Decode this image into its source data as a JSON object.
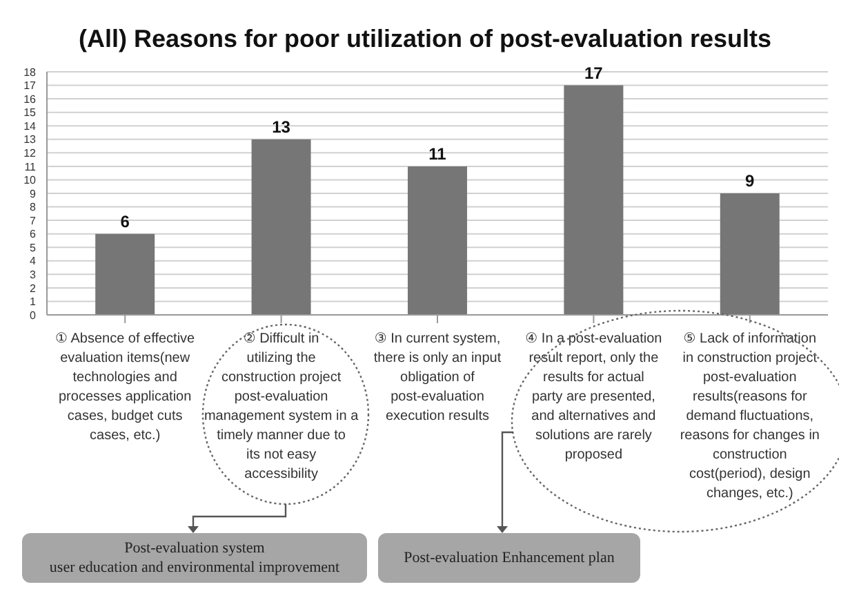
{
  "chart_data": {
    "type": "bar",
    "title": "(All) Reasons for poor utilization of post-evaluation results",
    "categories": [
      "① Absence of effective evaluation items(new technologies and processes application cases, budget cuts cases, etc.)",
      "② Difficult in utilizing the construction project post-evaluation management system in a timely manner due to its not easy accessibility",
      "③ In current system, there is only an input obligation of post-evaluation execution results",
      "④ In a post-evaluation result report, only the results for actual party are presented, and alternatives and solutions are rarely proposed",
      "⑤ Lack of information in construction project post-evaluation results(reasons for demand fluctuations, reasons for changes in construction cost(period), design changes, etc.)"
    ],
    "values": [
      6,
      13,
      11,
      17,
      9
    ],
    "color": "#767676",
    "ylim": [
      0,
      18
    ],
    "yticks": [
      0,
      1,
      2,
      3,
      4,
      5,
      6,
      7,
      8,
      9,
      10,
      11,
      12,
      13,
      14,
      15,
      16,
      17,
      18
    ],
    "grid": "y",
    "data_labels": true,
    "annotations": [
      "Post-evaluation system\nuser education and environmental improvement",
      "Post-evaluation Enhancement plan"
    ]
  }
}
